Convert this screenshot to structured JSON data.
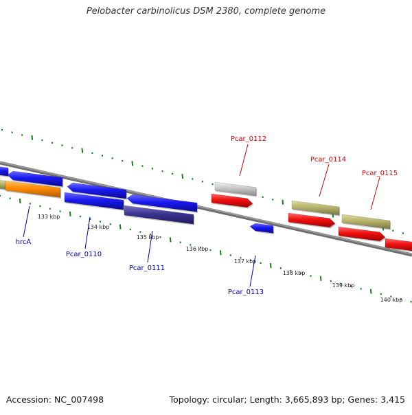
{
  "title": "Pelobacter carbinolicus DSM 2380, complete genome",
  "footer": {
    "accession": "Accession: NC_007498",
    "summary": "Topology: circular; Length: 3,665,893 bp; Genes: 3,415"
  },
  "colors": {
    "backbone": "#808080",
    "tick": "#1e7a1e",
    "forward_label": "#cc0000",
    "reverse_label": "#0000aa"
  },
  "kbp_labels": [
    "133 kbp",
    "134 kbp",
    "135 kbp",
    "136 kbp",
    "137 kbp",
    "138 kbp",
    "139 kbp",
    "140 kbp"
  ],
  "genes": [
    {
      "label": "hrcA",
      "strand": "reverse",
      "color": "#ff8c00"
    },
    {
      "label": "Pcar_0110",
      "strand": "reverse",
      "color": "#1010ee"
    },
    {
      "label": "Pcar_0111",
      "strand": "reverse",
      "color": "#3a3490"
    },
    {
      "label": "Pcar_0112",
      "strand": "forward",
      "color": "#c0c0c0"
    },
    {
      "label": "Pcar_0113",
      "strand": "reverse",
      "color": "#1010ee"
    },
    {
      "label": "Pcar_0114",
      "strand": "forward",
      "color": "#b8b46e"
    },
    {
      "label": "Pcar_0115",
      "strand": "forward",
      "color": "#b8b46e"
    }
  ]
}
